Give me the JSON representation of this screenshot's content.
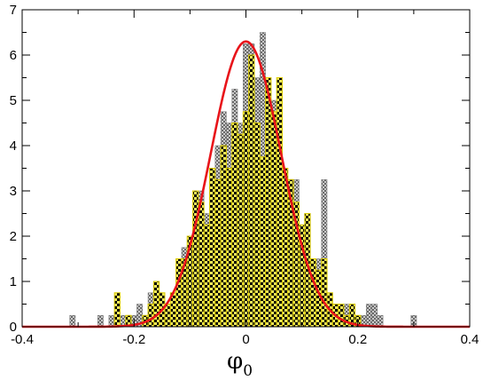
{
  "chart_data": {
    "type": "bar",
    "title": "",
    "xlabel_symbol": "φ",
    "xlabel_subscript": "0",
    "ylabel": "",
    "xlim": [
      -0.4,
      0.4
    ],
    "ylim": [
      0,
      7
    ],
    "x_ticks": [
      "-0.4",
      "-0.2",
      "0",
      "0.2",
      "0.4"
    ],
    "y_ticks": [
      "0",
      "1",
      "2",
      "3",
      "4",
      "5",
      "6",
      "7"
    ],
    "grid": false,
    "bin_width": 0.01,
    "series": [
      {
        "style": "grey checkered histogram",
        "bins": [
          {
            "x": -0.31,
            "y": 0.25
          },
          {
            "x": -0.26,
            "y": 0.25
          },
          {
            "x": -0.24,
            "y": 0.25
          },
          {
            "x": -0.23,
            "y": 0.5
          },
          {
            "x": -0.22,
            "y": 0.25
          },
          {
            "x": -0.21,
            "y": 0.25
          },
          {
            "x": -0.2,
            "y": 0.25
          },
          {
            "x": -0.19,
            "y": 0.5
          },
          {
            "x": -0.18,
            "y": 0.25
          },
          {
            "x": -0.17,
            "y": 0.75
          },
          {
            "x": -0.16,
            "y": 1.0
          },
          {
            "x": -0.15,
            "y": 0.5
          },
          {
            "x": -0.14,
            "y": 0.5
          },
          {
            "x": -0.13,
            "y": 0.75
          },
          {
            "x": -0.12,
            "y": 1.25
          },
          {
            "x": -0.11,
            "y": 1.75
          },
          {
            "x": -0.1,
            "y": 1.5
          },
          {
            "x": -0.09,
            "y": 2.0
          },
          {
            "x": -0.08,
            "y": 3.0
          },
          {
            "x": -0.07,
            "y": 2.5
          },
          {
            "x": -0.06,
            "y": 2.75
          },
          {
            "x": -0.05,
            "y": 4.0
          },
          {
            "x": -0.04,
            "y": 4.75
          },
          {
            "x": -0.03,
            "y": 4.5
          },
          {
            "x": -0.02,
            "y": 5.25
          },
          {
            "x": -0.01,
            "y": 4.5
          },
          {
            "x": 0.0,
            "y": 6.25
          },
          {
            "x": 0.01,
            "y": 6.25
          },
          {
            "x": 0.02,
            "y": 5.5
          },
          {
            "x": 0.03,
            "y": 6.5
          },
          {
            "x": 0.04,
            "y": 5.25
          },
          {
            "x": 0.05,
            "y": 5.0
          },
          {
            "x": 0.06,
            "y": 3.0
          },
          {
            "x": 0.07,
            "y": 2.5
          },
          {
            "x": 0.08,
            "y": 2.75
          },
          {
            "x": 0.09,
            "y": 3.25
          },
          {
            "x": 0.1,
            "y": 2.0
          },
          {
            "x": 0.11,
            "y": 1.75
          },
          {
            "x": 0.12,
            "y": 1.25
          },
          {
            "x": 0.13,
            "y": 1.5
          },
          {
            "x": 0.14,
            "y": 3.25
          },
          {
            "x": 0.15,
            "y": 0.75
          },
          {
            "x": 0.16,
            "y": 0.5
          },
          {
            "x": 0.17,
            "y": 0.25
          },
          {
            "x": 0.18,
            "y": 0.5
          },
          {
            "x": 0.19,
            "y": 0.25
          },
          {
            "x": 0.2,
            "y": 0.25
          },
          {
            "x": 0.21,
            "y": 0.25
          },
          {
            "x": 0.22,
            "y": 0.5
          },
          {
            "x": 0.23,
            "y": 0.5
          },
          {
            "x": 0.24,
            "y": 0.25
          },
          {
            "x": 0.3,
            "y": 0.25
          }
        ]
      },
      {
        "style": "yellow/black checkered histogram",
        "bins": [
          {
            "x": -0.23,
            "y": 0.75
          },
          {
            "x": -0.21,
            "y": 0.25
          },
          {
            "x": -0.18,
            "y": 0.25
          },
          {
            "x": -0.17,
            "y": 0.5
          },
          {
            "x": -0.16,
            "y": 1.0
          },
          {
            "x": -0.15,
            "y": 0.75
          },
          {
            "x": -0.14,
            "y": 0.5
          },
          {
            "x": -0.13,
            "y": 0.75
          },
          {
            "x": -0.12,
            "y": 1.5
          },
          {
            "x": -0.11,
            "y": 1.5
          },
          {
            "x": -0.1,
            "y": 2.0
          },
          {
            "x": -0.09,
            "y": 3.0
          },
          {
            "x": -0.08,
            "y": 2.75
          },
          {
            "x": -0.07,
            "y": 2.25
          },
          {
            "x": -0.06,
            "y": 3.5
          },
          {
            "x": -0.05,
            "y": 3.25
          },
          {
            "x": -0.04,
            "y": 4.0
          },
          {
            "x": -0.03,
            "y": 3.5
          },
          {
            "x": -0.02,
            "y": 4.5
          },
          {
            "x": -0.01,
            "y": 4.25
          },
          {
            "x": 0.0,
            "y": 4.75
          },
          {
            "x": 0.01,
            "y": 6.0
          },
          {
            "x": 0.02,
            "y": 4.5
          },
          {
            "x": 0.03,
            "y": 3.75
          },
          {
            "x": 0.04,
            "y": 5.5
          },
          {
            "x": 0.05,
            "y": 4.75
          },
          {
            "x": 0.06,
            "y": 5.5
          },
          {
            "x": 0.07,
            "y": 3.5
          },
          {
            "x": 0.08,
            "y": 3.25
          },
          {
            "x": 0.09,
            "y": 2.75
          },
          {
            "x": 0.1,
            "y": 2.25
          },
          {
            "x": 0.11,
            "y": 2.5
          },
          {
            "x": 0.12,
            "y": 1.5
          },
          {
            "x": 0.13,
            "y": 1.25
          },
          {
            "x": 0.14,
            "y": 1.5
          },
          {
            "x": 0.15,
            "y": 0.75
          },
          {
            "x": 0.16,
            "y": 0.5
          },
          {
            "x": 0.17,
            "y": 0.5
          },
          {
            "x": 0.18,
            "y": 0.25
          },
          {
            "x": 0.19,
            "y": 0.5
          },
          {
            "x": 0.2,
            "y": 0.25
          }
        ]
      }
    ],
    "fit_curve": {
      "type": "gaussian",
      "amplitude": 6.3,
      "mean": 0.0,
      "sigma": 0.063,
      "color": "#e8141a"
    },
    "colors": {
      "grey_fill": "#b8b8b8",
      "yellow_fill": "#f0e85a",
      "check_dark": "#000000",
      "yellow_outline": "#d8c800",
      "axis": "#000000"
    }
  }
}
